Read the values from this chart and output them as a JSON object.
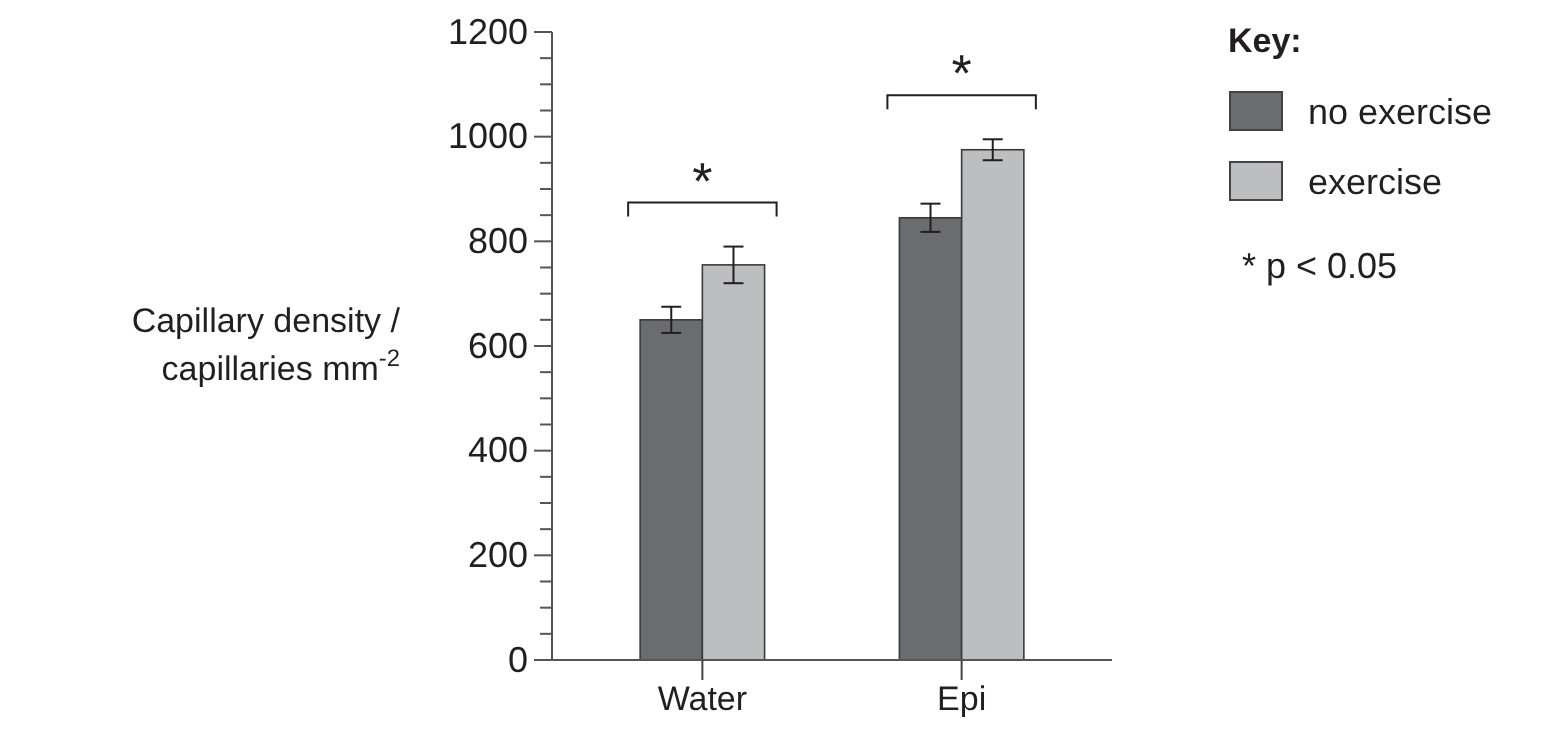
{
  "chart_data": {
    "type": "bar",
    "ylabel": "Capillary density /\ncapillaries mm$^{-2}$",
    "categories": [
      "Water",
      "Epi"
    ],
    "series": [
      {
        "name": "no exercise",
        "color": "#6b6c70",
        "values": [
          650,
          845
        ],
        "errors": [
          25,
          27
        ]
      },
      {
        "name": "exercise",
        "color": "#bdbec0",
        "values": [
          755,
          975
        ],
        "errors": [
          35,
          20
        ]
      }
    ],
    "ylim": [
      0,
      1200
    ],
    "yticks": [
      0,
      {
        "value": 50,
        "label": null
      },
      {
        "value": 100,
        "label": null
      },
      {
        "value": 150,
        "label": null
      },
      200,
      {
        "value": 250,
        "label": null
      },
      {
        "value": 300,
        "label": null
      },
      {
        "value": 350,
        "label": null
      },
      400,
      {
        "value": 450,
        "label": null
      },
      {
        "value": 500,
        "label": null
      },
      {
        "value": 550,
        "label": null
      },
      600,
      {
        "value": 650,
        "label": null
      },
      {
        "value": 700,
        "label": null
      },
      {
        "value": 750,
        "label": null
      },
      800,
      {
        "value": 850,
        "label": null
      },
      {
        "value": 900,
        "label": null
      },
      {
        "value": 950,
        "label": null
      },
      1000,
      {
        "value": 1050,
        "label": null
      },
      {
        "value": 1100,
        "label": null
      },
      {
        "value": 1150,
        "label": null
      },
      1200
    ],
    "legend": "top right",
    "legend_title": "Key:",
    "annotations": [
      "*",
      "*",
      "* p < 0.05"
    ],
    "grid": false
  }
}
